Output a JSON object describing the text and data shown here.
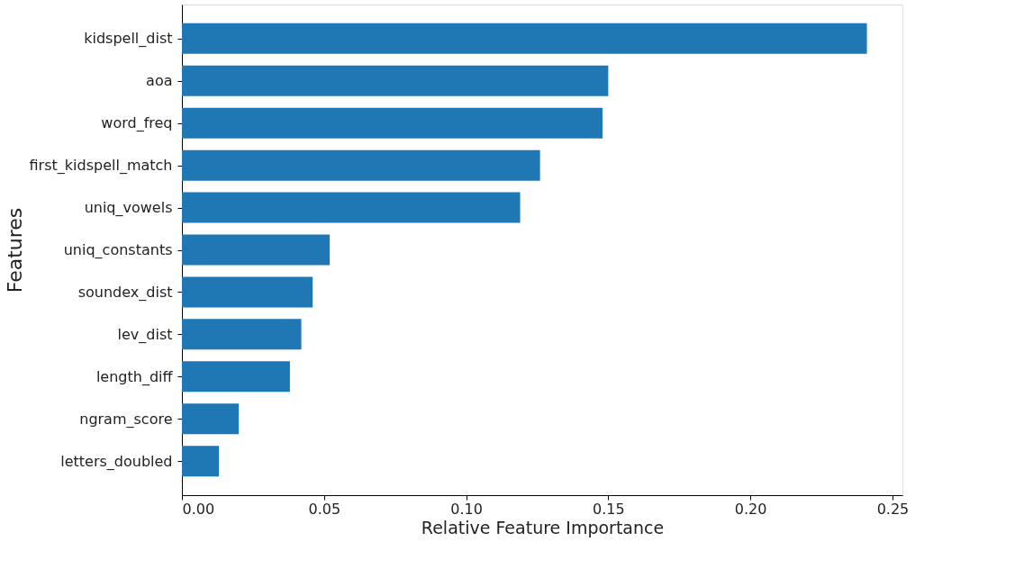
{
  "chart_data": {
    "type": "bar",
    "orientation": "horizontal",
    "xlabel": "Relative Feature Importance",
    "ylabel": "Features",
    "categories": [
      "kidspell_dist",
      "aoa",
      "word_freq",
      "first_kidspell_match",
      "uniq_vowels",
      "uniq_constants",
      "soundex_dist",
      "lev_dist",
      "length_diff",
      "ngram_score",
      "letters_doubled"
    ],
    "values": [
      0.241,
      0.15,
      0.148,
      0.126,
      0.119,
      0.052,
      0.046,
      0.042,
      0.038,
      0.02,
      0.013
    ],
    "color": "#1f77b4",
    "xlim": [
      0,
      0.2535
    ],
    "xticks": [
      {
        "value": 0,
        "label": "0.00"
      },
      {
        "value": 0.05,
        "label": "0.05"
      },
      {
        "value": 0.1,
        "label": "0.10"
      },
      {
        "value": 0.15,
        "label": "0.15"
      },
      {
        "value": 0.2,
        "label": "0.20"
      },
      {
        "value": 0.25,
        "label": "0.25"
      }
    ],
    "grid": false
  }
}
